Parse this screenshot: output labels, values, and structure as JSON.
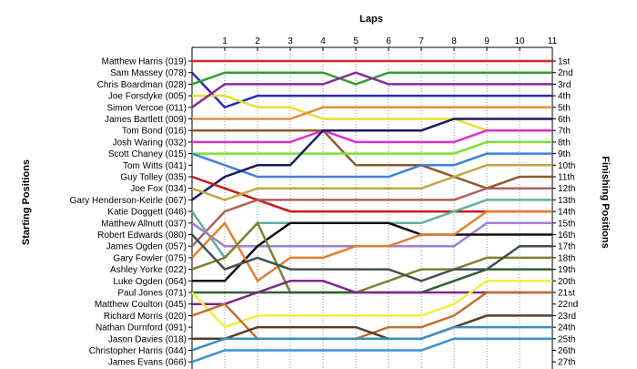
{
  "chart_data": {
    "type": "line",
    "title": "Laps",
    "ylabel_left": "Starting Positions",
    "ylabel_right": "Finishing Positions",
    "laps": [
      1,
      2,
      3,
      4,
      5,
      6,
      7,
      8,
      9,
      10,
      11
    ],
    "start_labels": [
      "Matthew Harris (019)",
      "Sam Massey (078)",
      "Chris Boardman (028)",
      "Joe Forsdyke (005)",
      "Simon Vercoe (011)",
      "James Bartlett (009)",
      "Tom Bond (016)",
      "Josh Waring (032)",
      "Scott Chaney (015)",
      "Tom Witts (041)",
      "Guy Tolley (035)",
      "Joe Fox (034)",
      "Gary Henderson-Keirle (067)",
      "Katie Doggett (046)",
      "Matthew Allnutt (037)",
      "Robert Edwards (080)",
      "James Ogden (057)",
      "Gary Fowler (075)",
      "Ashley Yorke (022)",
      "Luke Ogden (064)",
      "Paul Jones (071)",
      "Matthew Coulton (045)",
      "Richard Morris (020)",
      "Nathan Durnford (091)",
      "Jason Davies (018)",
      "Christopher Harris (044)",
      "James Evans (066)"
    ],
    "finish_labels": [
      "1st",
      "2nd",
      "3rd",
      "4th",
      "5th",
      "6th",
      "7th",
      "8th",
      "9th",
      "10th",
      "11th",
      "12th",
      "13th",
      "14th",
      "15th",
      "16th",
      "17th",
      "18th",
      "19th",
      "20th",
      "21st",
      "22nd",
      "23rd",
      "24th",
      "25th",
      "26th",
      "27th"
    ],
    "series": [
      {
        "color": "#d42a2a",
        "positions": [
          1,
          1,
          1,
          1,
          1,
          1,
          1,
          1,
          1,
          1,
          1,
          1
        ]
      },
      {
        "color": "#2a2ab4",
        "positions": [
          2,
          5,
          4,
          4,
          4,
          4,
          4,
          4,
          4,
          4,
          4,
          4
        ]
      },
      {
        "color": "#2ea02e",
        "positions": [
          3,
          2,
          2,
          2,
          2,
          3,
          2,
          2,
          2,
          2,
          2,
          2
        ]
      },
      {
        "color": "#e8e030",
        "positions": [
          4,
          4,
          5,
          5,
          6,
          6,
          6,
          6,
          6,
          7,
          7,
          7
        ]
      },
      {
        "color": "#8a2a9a",
        "positions": [
          5,
          3,
          3,
          3,
          3,
          2,
          3,
          3,
          3,
          3,
          3,
          3
        ]
      },
      {
        "color": "#e09040",
        "positions": [
          6,
          6,
          6,
          6,
          5,
          5,
          5,
          5,
          5,
          5,
          5,
          5
        ]
      },
      {
        "color": "#8a5a2a",
        "positions": [
          7,
          7,
          7,
          7,
          7,
          10,
          10,
          10,
          11,
          12,
          11,
          11
        ]
      },
      {
        "color": "#e030d0",
        "positions": [
          8,
          8,
          8,
          8,
          7,
          8,
          8,
          8,
          8,
          7,
          7,
          7
        ]
      },
      {
        "color": "#80e030",
        "positions": [
          9,
          9,
          9,
          9,
          9,
          9,
          9,
          9,
          9,
          8,
          8,
          8
        ]
      },
      {
        "color": "#4080e0",
        "positions": [
          9,
          10,
          11,
          11,
          11,
          11,
          11,
          10,
          10,
          9,
          9,
          9
        ]
      },
      {
        "color": "#1a1a60",
        "positions": [
          13,
          11,
          10,
          10,
          7,
          7,
          7,
          7,
          6,
          6,
          6,
          6
        ]
      },
      {
        "color": "#c41a1a",
        "positions": [
          11,
          12,
          13,
          14,
          14,
          14,
          14,
          14,
          14,
          14,
          14,
          14
        ]
      },
      {
        "color": "#c0a840",
        "positions": [
          12,
          13,
          12,
          12,
          12,
          12,
          12,
          12,
          11,
          10,
          10,
          10
        ]
      },
      {
        "color": "#b06060",
        "positions": [
          17,
          14,
          13,
          13,
          13,
          13,
          13,
          13,
          13,
          12,
          12,
          12
        ]
      },
      {
        "color": "#60b0a0",
        "positions": [
          14,
          18,
          15,
          15,
          15,
          15,
          15,
          15,
          14,
          13,
          13,
          13
        ]
      },
      {
        "color": "#a080d0",
        "positions": [
          15,
          17,
          17,
          17,
          17,
          17,
          17,
          17,
          17,
          15,
          15,
          15
        ]
      },
      {
        "color": "#101010",
        "positions": [
          20,
          20,
          17,
          15,
          15,
          15,
          15,
          16,
          16,
          16,
          16,
          16
        ]
      },
      {
        "color": "#e08030",
        "positions": [
          18,
          15,
          20,
          18,
          18,
          17,
          17,
          16,
          16,
          14,
          14,
          14
        ]
      },
      {
        "color": "#808030",
        "positions": [
          19,
          18,
          15,
          21,
          21,
          21,
          20,
          19,
          19,
          18,
          18,
          18
        ]
      },
      {
        "color": "#405050",
        "positions": [
          16,
          19,
          18,
          19,
          19,
          19,
          19,
          20,
          19,
          19,
          17,
          17
        ]
      },
      {
        "color": "#306030",
        "positions": [
          21,
          21,
          21,
          21,
          21,
          21,
          21,
          21,
          20,
          19,
          19,
          19
        ]
      },
      {
        "color": "#7a2a8a",
        "positions": [
          22,
          22,
          21,
          20,
          20,
          21,
          21,
          21,
          21,
          21,
          21,
          21
        ]
      },
      {
        "color": "#f0f040",
        "positions": [
          21,
          24,
          23,
          23,
          23,
          23,
          23,
          23,
          22,
          20,
          20,
          20
        ]
      },
      {
        "color": "#c07030",
        "positions": [
          23,
          22,
          25,
          25,
          25,
          25,
          24,
          24,
          23,
          21,
          21,
          21
        ]
      },
      {
        "color": "#5a3a2a",
        "positions": [
          25,
          25,
          24,
          24,
          24,
          24,
          25,
          25,
          24,
          23,
          23,
          23
        ]
      },
      {
        "color": "#3a90c0",
        "positions": [
          26,
          25,
          25,
          25,
          25,
          25,
          25,
          25,
          24,
          24,
          24,
          24
        ]
      },
      {
        "color": "#4090d0",
        "positions": [
          27,
          26,
          26,
          26,
          26,
          26,
          26,
          26,
          25,
          25,
          25,
          25
        ]
      }
    ]
  }
}
